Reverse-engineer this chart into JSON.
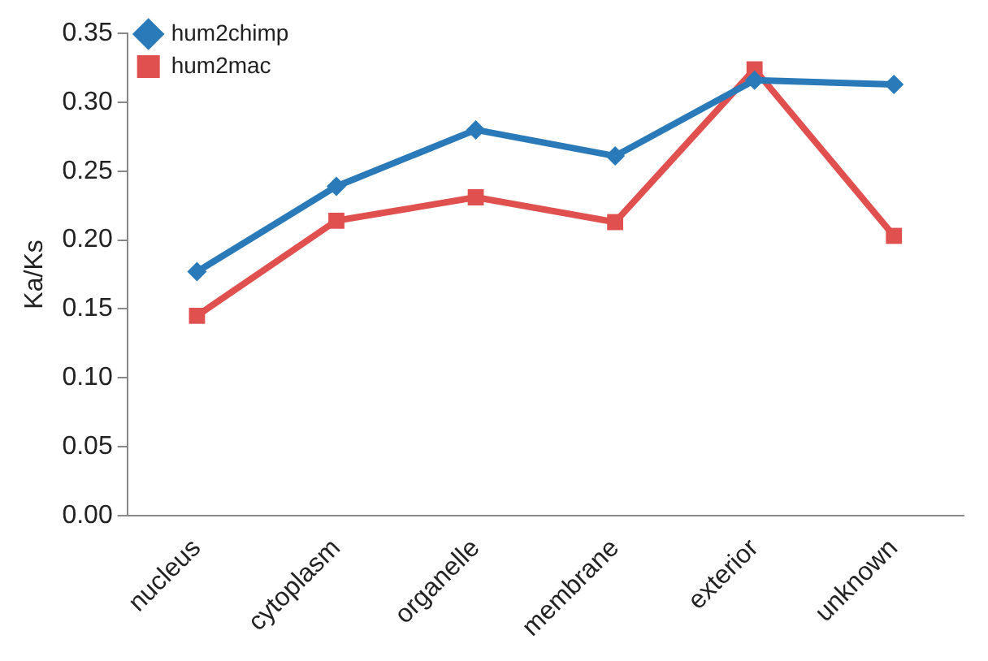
{
  "chart_data": {
    "type": "line",
    "ylabel": "Ka/Ks",
    "categories": [
      "nucleus",
      "cytoplasm",
      "organelle",
      "membrane",
      "exterior",
      "unknown"
    ],
    "series": [
      {
        "name": "hum2chimp",
        "color": "#2a7ab9",
        "marker": "diamond",
        "values": [
          0.177,
          0.239,
          0.28,
          0.261,
          0.316,
          0.313
        ]
      },
      {
        "name": "hum2mac",
        "color": "#e0504f",
        "marker": "square",
        "values": [
          0.145,
          0.214,
          0.231,
          0.213,
          0.324,
          0.203
        ]
      }
    ],
    "ylim": [
      0,
      0.35
    ],
    "yticks": [
      {
        "value": 0,
        "label": "0.00"
      },
      {
        "value": 0.05,
        "label": "0.05"
      },
      {
        "value": 0.1,
        "label": "0.10"
      },
      {
        "value": 0.15,
        "label": "0.15"
      },
      {
        "value": 0.2,
        "label": "0.20"
      },
      {
        "value": 0.25,
        "label": "0.25"
      },
      {
        "value": 0.3,
        "label": "0.30"
      },
      {
        "value": 0.35,
        "label": "0.35"
      }
    ],
    "grid": false,
    "legend": "top left",
    "line_style": "solid"
  }
}
